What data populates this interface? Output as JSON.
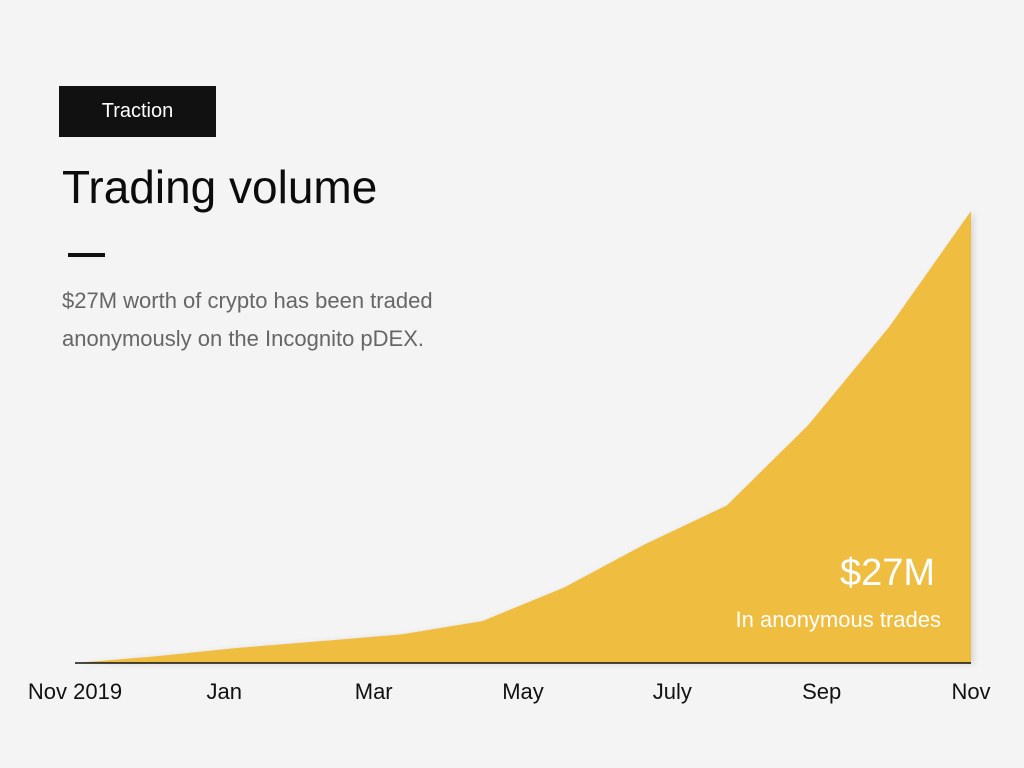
{
  "slide": {
    "tag": "Traction",
    "title": "Trading volume",
    "description": "$27M worth of crypto has been traded anonymously on the Incognito pDEX."
  },
  "callout": {
    "value": "$27M",
    "label": "In anonymous trades"
  },
  "colors": {
    "area": "#efbd40",
    "background": "#f4f4f4",
    "tag_background": "#111111"
  },
  "chart_data": {
    "type": "area",
    "x_ticks": [
      "Nov 2019",
      "Jan",
      "Mar",
      "May",
      "July",
      "Sep",
      "Nov"
    ],
    "series": [
      {
        "values": [
          {
            "month": 0,
            "value": 0
          },
          {
            "month": 1,
            "value": 0.4
          },
          {
            "month": 2,
            "value": 0.9
          },
          {
            "month": 3,
            "value": 1.3
          },
          {
            "month": 4,
            "value": 1.7
          },
          {
            "month": 5,
            "value": 2.5
          },
          {
            "month": 6,
            "value": 4.5
          },
          {
            "month": 7,
            "value": 7.1
          },
          {
            "month": 8,
            "value": 9.4
          },
          {
            "month": 9,
            "value": 14.2
          },
          {
            "month": 10,
            "value": 20.1
          },
          {
            "month": 11,
            "value": 27
          }
        ]
      }
    ],
    "ylim": [
      0,
      27
    ],
    "grid": false,
    "legend": "none"
  }
}
